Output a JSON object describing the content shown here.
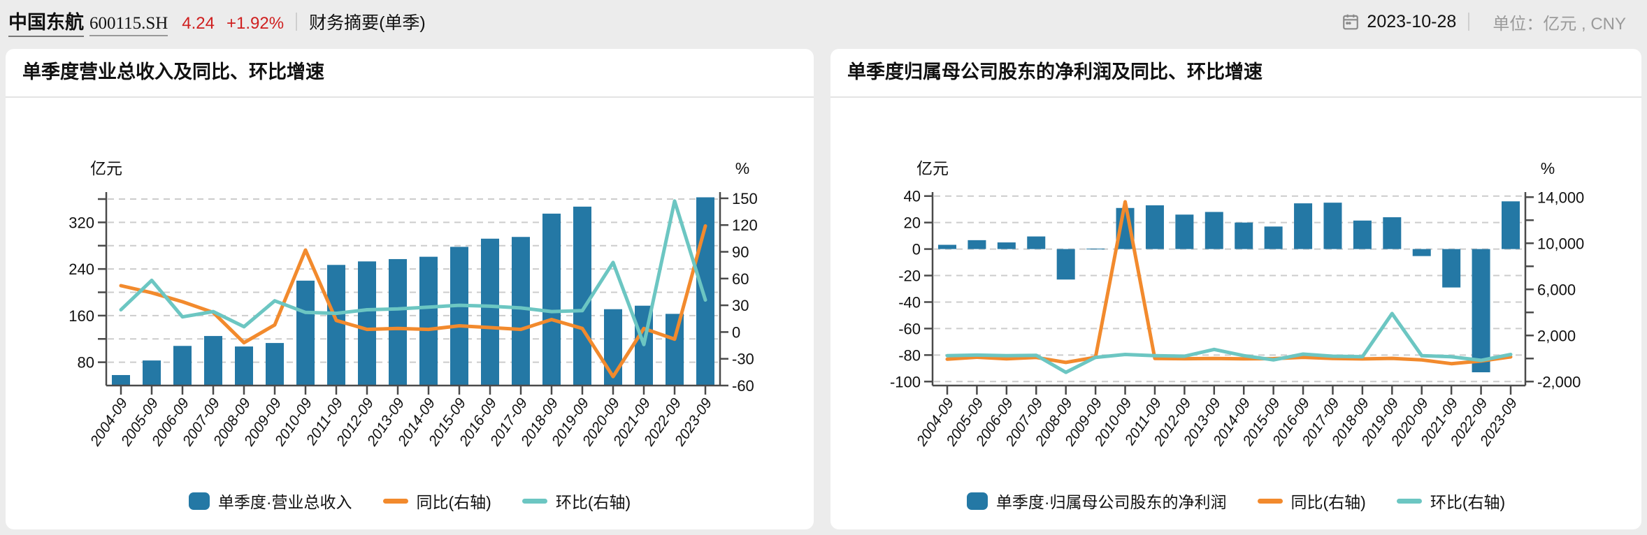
{
  "header": {
    "stock_name": "中国东航",
    "stock_code": "600115.SH",
    "price": "4.24",
    "change_percent": "+1.92%",
    "page_title": "财务摘要(单季)",
    "date": "2023-10-28",
    "unit_label": "单位：亿元 , CNY"
  },
  "colors": {
    "bar": "#2478a5",
    "yoy": "#f28a2d",
    "qoq": "#6cc6c2",
    "grid": "#cccccc",
    "axis": "#4a4a4a",
    "tick_text": "#111111"
  },
  "chart_data": [
    {
      "type": "bar+line",
      "title": "单季度营业总收入及同比、环比增速",
      "left_unit": "亿元",
      "right_unit": "%",
      "legend_position": "bottom",
      "grid": true,
      "categories": [
        "2004-09",
        "2005-09",
        "2006-09",
        "2007-09",
        "2008-09",
        "2009-09",
        "2010-09",
        "2011-09",
        "2012-09",
        "2013-09",
        "2014-09",
        "2015-09",
        "2016-09",
        "2017-09",
        "2018-09",
        "2019-09",
        "2020-09",
        "2021-09",
        "2022-09",
        "2023-09"
      ],
      "bars": {
        "name": "单季度·营业总收入",
        "axis": "left",
        "values": [
          58,
          83,
          108,
          125,
          107,
          113,
          220,
          247,
          253,
          257,
          261,
          278,
          292,
          295,
          335,
          347,
          171,
          177,
          163,
          363
        ]
      },
      "lines": [
        {
          "name": "同比(右轴)",
          "axis": "right",
          "values": [
            52,
            44,
            34,
            22,
            -12,
            8,
            92,
            13,
            3,
            4,
            3,
            7,
            5,
            3,
            14,
            4,
            -50,
            4,
            -8,
            119
          ]
        },
        {
          "name": "环比(右轴)",
          "axis": "right",
          "values": [
            25,
            58,
            17,
            23,
            6,
            35,
            22,
            21,
            25,
            26,
            28,
            30,
            29,
            27,
            23,
            24,
            78,
            -14,
            147,
            36
          ]
        }
      ],
      "left_axis": {
        "min": 40,
        "max": 372,
        "tick_values": [
          80,
          120,
          160,
          200,
          240,
          280,
          320,
          360
        ],
        "tick_labels": [
          "80",
          "",
          "160",
          "",
          "240",
          "",
          "320",
          ""
        ]
      },
      "right_axis": {
        "min": -60,
        "max": 157,
        "tick_values": [
          -60,
          -30,
          0,
          30,
          60,
          90,
          120,
          150
        ],
        "tick_labels": [
          "-60",
          "-30",
          "0",
          "30",
          "60",
          "90",
          "120",
          "150"
        ]
      }
    },
    {
      "type": "bar+line",
      "title": "单季度归属母公司股东的净利润及同比、环比增速",
      "left_unit": "亿元",
      "right_unit": "%",
      "legend_position": "bottom",
      "grid": true,
      "categories": [
        "2004-09",
        "2005-09",
        "2006-09",
        "2007-09",
        "2008-09",
        "2009-09",
        "2010-09",
        "2011-09",
        "2012-09",
        "2013-09",
        "2014-09",
        "2015-09",
        "2016-09",
        "2017-09",
        "2018-09",
        "2019-09",
        "2020-09",
        "2021-09",
        "2022-09",
        "2023-09"
      ],
      "bars": {
        "name": "单季度·归属母公司股东的净利润",
        "axis": "left",
        "values": [
          3.2,
          6.7,
          5,
          9.5,
          -23,
          0.3,
          31,
          33,
          26,
          28,
          20,
          17,
          34.5,
          35,
          21.5,
          24,
          -5.3,
          -29,
          -93,
          36
        ]
      },
      "lines": [
        {
          "name": "同比(右轴)",
          "axis": "right",
          "values": [
            -60,
            109,
            -25,
            90,
            -342,
            101,
            13600,
            6,
            -21,
            8,
            -29,
            -15,
            103,
            1,
            -39,
            12,
            -122,
            -447,
            -220,
            139
          ]
        },
        {
          "name": "环比(右轴)",
          "axis": "right",
          "values": [
            250,
            300,
            250,
            280,
            -1200,
            100,
            350,
            250,
            200,
            790,
            250,
            -120,
            380,
            200,
            150,
            3900,
            250,
            150,
            -160,
            350
          ]
        }
      ],
      "left_axis": {
        "min": -103,
        "max": 43,
        "tick_values": [
          -100,
          -80,
          -60,
          -40,
          -20,
          0,
          20,
          40
        ],
        "tick_labels": [
          "-100",
          "-80",
          "-60",
          "-40",
          "-20",
          "0",
          "20",
          "40"
        ]
      },
      "right_axis": {
        "min": -2345,
        "max": 14440,
        "tick_values": [
          -2000,
          0,
          2000,
          4000,
          6000,
          8000,
          10000,
          12000,
          14000
        ],
        "tick_labels": [
          "-2,000",
          "",
          "2,000",
          "",
          "6,000",
          "",
          "10,000",
          "",
          "14,000"
        ]
      }
    }
  ]
}
